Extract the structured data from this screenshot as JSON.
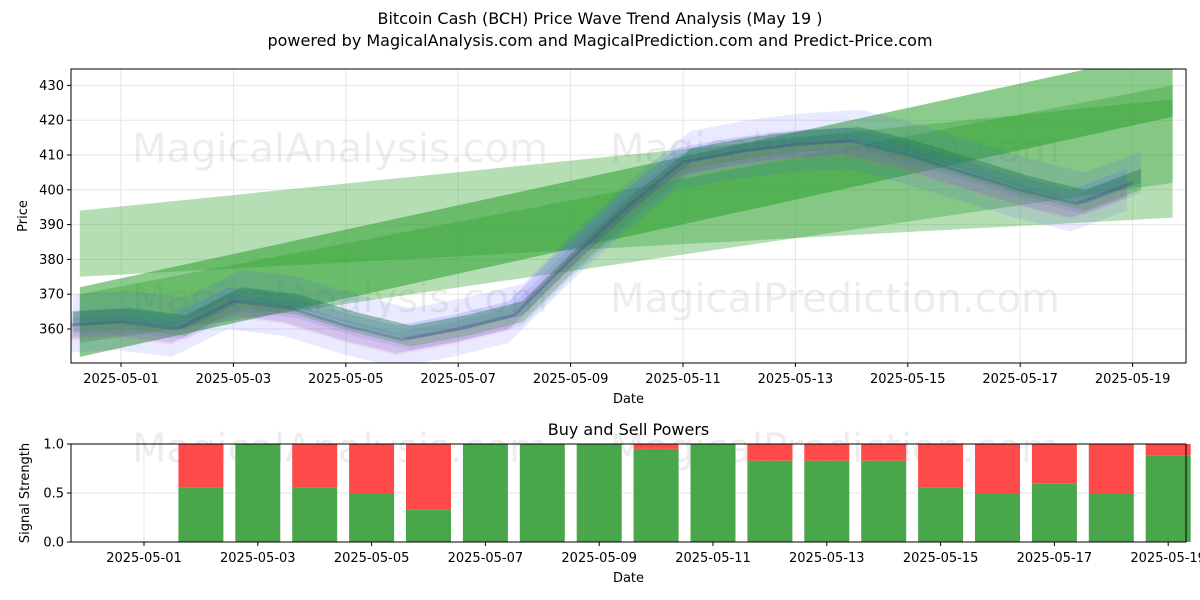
{
  "header": {
    "title": "Bitcoin Cash (BCH) Price Wave Trend Analysis (May 19 )",
    "subtitle": "powered by MagicalAnalysis.com and MagicalPrediction.com and Predict-Price.com"
  },
  "watermarks": [
    "MagicalAnalysis.com",
    "MagicalPrediction.com"
  ],
  "colors": {
    "trend_band": "#2ca02c",
    "wave_blue": "#4c4cff",
    "wave_red": "#ff6b6b",
    "buy": "#4aa64a",
    "sell": "#ff4a4a"
  },
  "chart_data": [
    {
      "type": "area",
      "title": "",
      "xlabel": "Date",
      "ylabel": "Price",
      "x_ticks": [
        "2025-05-01",
        "2025-05-03",
        "2025-05-05",
        "2025-05-07",
        "2025-05-09",
        "2025-05-11",
        "2025-05-13",
        "2025-05-15",
        "2025-05-17",
        "2025-05-19"
      ],
      "y_ticks": [
        360,
        370,
        380,
        390,
        400,
        410,
        420,
        430
      ],
      "ylim": [
        350,
        435
      ],
      "grid": true,
      "trend_bands": [
        {
          "name": "",
          "x": [
            "2025-04-30",
            "2025-05-19"
          ],
          "upper": [
            394,
            426
          ],
          "lower": [
            375,
            392
          ],
          "opacity": 0.35
        },
        {
          "name": "",
          "x": [
            "2025-04-30",
            "2025-05-19"
          ],
          "upper": [
            372,
            440
          ],
          "lower": [
            352,
            421
          ],
          "opacity": 0.55
        },
        {
          "name": "",
          "x": [
            "2025-04-30",
            "2025-05-19"
          ],
          "upper": [
            370,
            430
          ],
          "lower": [
            356,
            402
          ],
          "opacity": 0.35
        }
      ],
      "series": [
        {
          "name": "",
          "x": [
            "2025-04-30",
            "2025-05-01",
            "2025-05-02",
            "2025-05-03",
            "2025-05-04",
            "2025-05-05",
            "2025-05-06",
            "2025-05-07",
            "2025-05-08",
            "2025-05-09",
            "2025-05-10",
            "2025-05-11",
            "2025-05-12",
            "2025-05-13",
            "2025-05-14",
            "2025-05-15",
            "2025-05-16",
            "2025-05-17",
            "2025-05-18",
            "2025-05-19"
          ],
          "values": [
            361,
            362,
            360,
            368,
            366,
            361,
            357,
            360,
            364,
            380,
            395,
            408,
            411,
            413,
            414,
            410,
            405,
            400,
            396,
            402
          ]
        }
      ]
    },
    {
      "type": "bar",
      "title": "Buy and Sell Powers",
      "xlabel": "Date",
      "ylabel": "Signal Strength",
      "x_ticks": [
        "2025-05-01",
        "2025-05-03",
        "2025-05-05",
        "2025-05-07",
        "2025-05-09",
        "2025-05-11",
        "2025-05-13",
        "2025-05-15",
        "2025-05-17",
        "2025-05-19"
      ],
      "y_ticks": [
        0.0,
        0.5,
        1.0
      ],
      "ylim": [
        0,
        1
      ],
      "categories": [
        "2025-05-02",
        "2025-05-03",
        "2025-05-04",
        "2025-05-05",
        "2025-05-06",
        "2025-05-07",
        "2025-05-08",
        "2025-05-09",
        "2025-05-10",
        "2025-05-11",
        "2025-05-12",
        "2025-05-13",
        "2025-05-14",
        "2025-05-15",
        "2025-05-16",
        "2025-05-17",
        "2025-05-18",
        "2025-05-19"
      ],
      "series": [
        {
          "name": "Buy",
          "values": [
            0.56,
            1.0,
            0.56,
            0.5,
            0.33,
            1.0,
            1.0,
            1.0,
            0.95,
            1.0,
            0.83,
            0.83,
            0.83,
            0.56,
            0.5,
            0.6,
            0.5,
            0.88
          ]
        },
        {
          "name": "Sell",
          "values": [
            0.44,
            0.0,
            0.44,
            0.5,
            0.67,
            0.0,
            0.0,
            0.0,
            0.05,
            0.0,
            0.17,
            0.17,
            0.17,
            0.44,
            0.5,
            0.4,
            0.5,
            0.12
          ]
        }
      ]
    }
  ]
}
